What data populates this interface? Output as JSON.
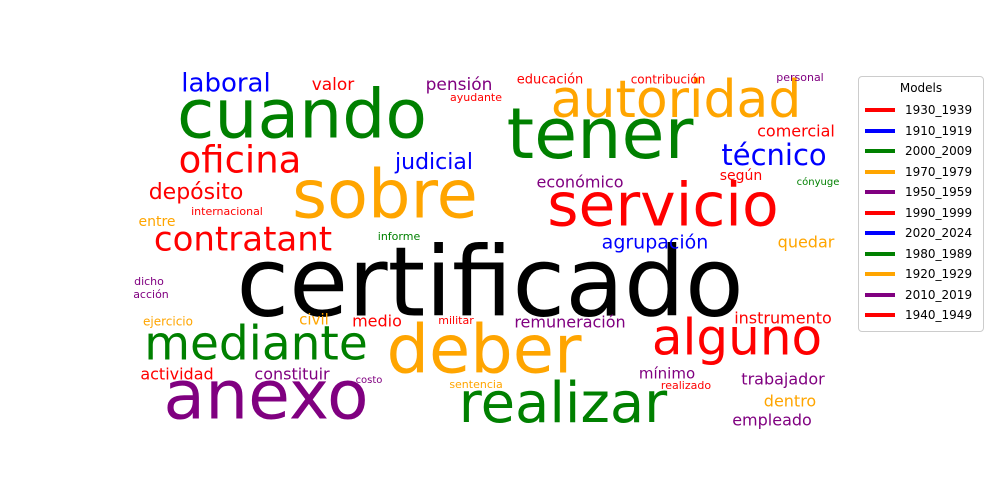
{
  "chart_data": {
    "type": "wordcloud",
    "title": "",
    "legend": {
      "title": "Models",
      "placement": "right",
      "entries": [
        {
          "name": "1930_1939",
          "color": "#ff0000"
        },
        {
          "name": "1910_1919",
          "color": "#0000ff"
        },
        {
          "name": "2000_2009",
          "color": "#008000"
        },
        {
          "name": "1970_1979",
          "color": "#ffa500"
        },
        {
          "name": "1950_1959",
          "color": "#800080"
        },
        {
          "name": "1990_1999",
          "color": "#ff0000"
        },
        {
          "name": "2020_2024",
          "color": "#0000ff"
        },
        {
          "name": "1980_1989",
          "color": "#008000"
        },
        {
          "name": "1920_1929",
          "color": "#ffa500"
        },
        {
          "name": "2010_2019",
          "color": "#800080"
        },
        {
          "name": "1940_1949",
          "color": "#ff0000"
        }
      ]
    },
    "words": [
      {
        "text": "certificado",
        "color": "#000000",
        "weight": 100
      },
      {
        "text": "sobre",
        "color": "#ffa500",
        "weight": 75
      },
      {
        "text": "cuando",
        "color": "#008000",
        "weight": 72
      },
      {
        "text": "tener",
        "color": "#008000",
        "weight": 72
      },
      {
        "text": "anexo",
        "color": "#800080",
        "weight": 72
      },
      {
        "text": "deber",
        "color": "#ffa500",
        "weight": 70
      },
      {
        "text": "servicio",
        "color": "#ff0000",
        "weight": 62
      },
      {
        "text": "realizar",
        "color": "#008000",
        "weight": 58
      },
      {
        "text": "autoridad",
        "color": "#ffa500",
        "weight": 52
      },
      {
        "text": "alguno",
        "color": "#ff0000",
        "weight": 52
      },
      {
        "text": "mediante",
        "color": "#008000",
        "weight": 50
      },
      {
        "text": "oficina",
        "color": "#ff0000",
        "weight": 42
      },
      {
        "text": "contratant",
        "color": "#ff0000",
        "weight": 37
      },
      {
        "text": "técnico",
        "color": "#0000ff",
        "weight": 32
      },
      {
        "text": "laboral",
        "color": "#0000ff",
        "weight": 29
      },
      {
        "text": "judicial",
        "color": "#0000ff",
        "weight": 27
      },
      {
        "text": "depósito",
        "color": "#ff0000",
        "weight": 26
      },
      {
        "text": "agrupación",
        "color": "#0000ff",
        "weight": 22
      },
      {
        "text": "valor",
        "color": "#ff0000",
        "weight": 19
      },
      {
        "text": "pensión",
        "color": "#800080",
        "weight": 19
      },
      {
        "text": "instrumento",
        "color": "#ff0000",
        "weight": 19
      },
      {
        "text": "remuneración",
        "color": "#800080",
        "weight": 18
      },
      {
        "text": "trabajador",
        "color": "#800080",
        "weight": 18
      },
      {
        "text": "constituir",
        "color": "#800080",
        "weight": 18
      },
      {
        "text": "comercial",
        "color": "#ff0000",
        "weight": 18
      },
      {
        "text": "económico",
        "color": "#800080",
        "weight": 18
      },
      {
        "text": "actividad",
        "color": "#ff0000",
        "weight": 18
      },
      {
        "text": "quedar",
        "color": "#ffa500",
        "weight": 18
      },
      {
        "text": "empleado",
        "color": "#800080",
        "weight": 18
      },
      {
        "text": "dentro",
        "color": "#ffa500",
        "weight": 18
      },
      {
        "text": "medio",
        "color": "#ff0000",
        "weight": 18
      },
      {
        "text": "civil",
        "color": "#ffa500",
        "weight": 17
      },
      {
        "text": "mínimo",
        "color": "#800080",
        "weight": 17
      },
      {
        "text": "entre",
        "color": "#ffa500",
        "weight": 16
      },
      {
        "text": "según",
        "color": "#ff0000",
        "weight": 16
      },
      {
        "text": "educación",
        "color": "#ff0000",
        "weight": 14
      },
      {
        "text": "contribución",
        "color": "#ff0000",
        "weight": 13
      },
      {
        "text": "ejercicio",
        "color": "#ffa500",
        "weight": 13
      },
      {
        "text": "personal",
        "color": "#800080",
        "weight": 12
      },
      {
        "text": "ayudante",
        "color": "#ff0000",
        "weight": 12
      },
      {
        "text": "internacional",
        "color": "#ff0000",
        "weight": 12
      },
      {
        "text": "informe",
        "color": "#008000",
        "weight": 12
      },
      {
        "text": "militar",
        "color": "#ff0000",
        "weight": 12
      },
      {
        "text": "dicho",
        "color": "#800080",
        "weight": 12
      },
      {
        "text": "acción",
        "color": "#800080",
        "weight": 12
      },
      {
        "text": "sentencia",
        "color": "#ffa500",
        "weight": 12
      },
      {
        "text": "realizado",
        "color": "#ff0000",
        "weight": 12
      },
      {
        "text": "costo",
        "color": "#800080",
        "weight": 11
      },
      {
        "text": "cónyuge",
        "color": "#008000",
        "weight": 11
      }
    ]
  }
}
